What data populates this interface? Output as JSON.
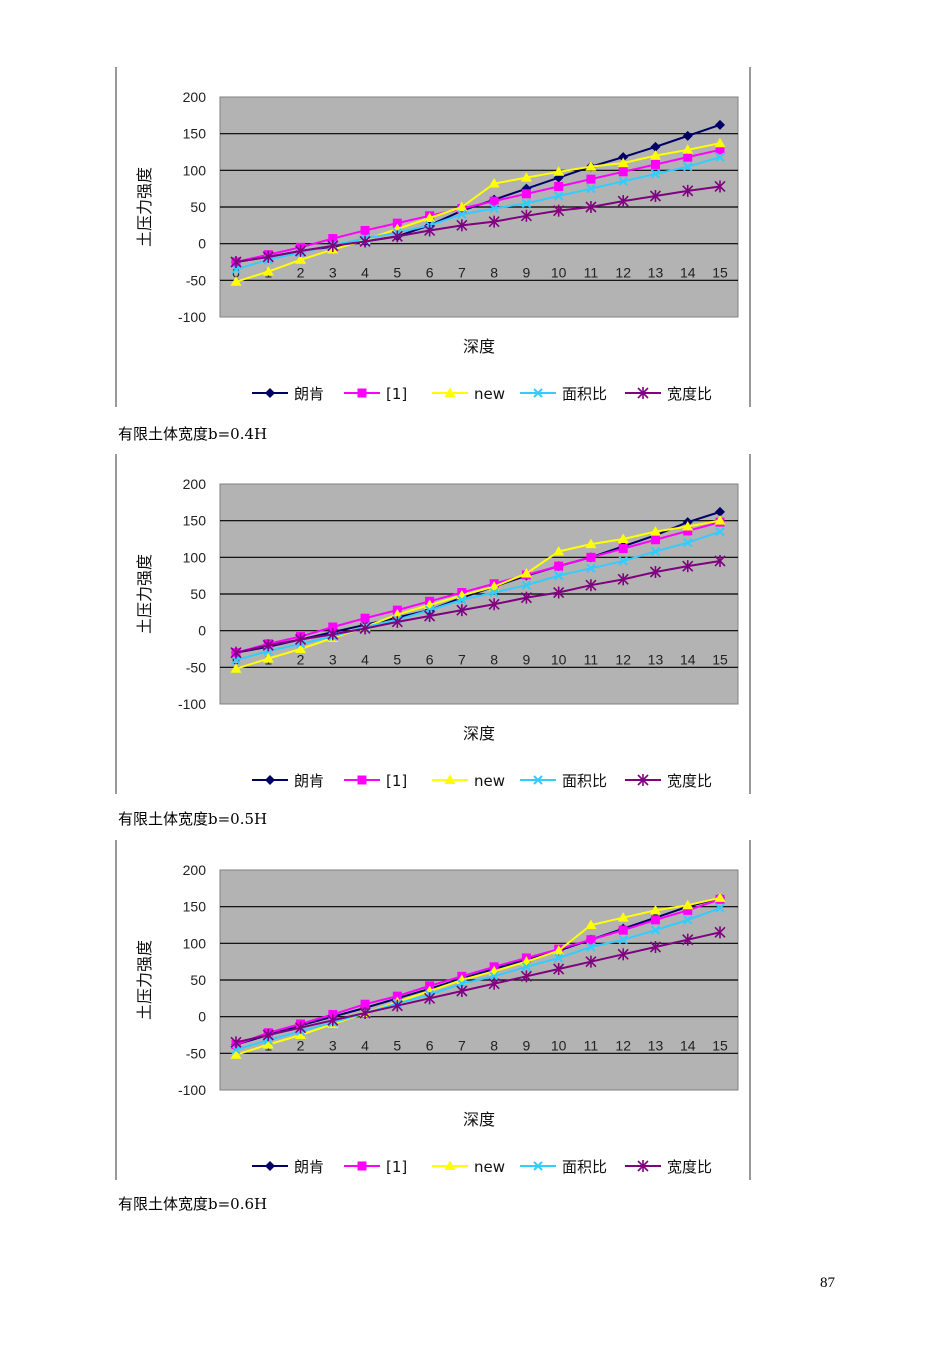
{
  "page_number": "87",
  "colors": {
    "plot_bg": "#b3b3b3",
    "grid": "#000000",
    "series": [
      "#000066",
      "#ff00ff",
      "#ffff00",
      "#33ccff",
      "#800080"
    ]
  },
  "chart_data": [
    {
      "type": "line",
      "caption": "有限土体宽度b=0.4H",
      "xlabel": "深度",
      "ylabel": "土压力强度",
      "x": [
        0,
        1,
        2,
        3,
        4,
        5,
        6,
        7,
        8,
        9,
        10,
        11,
        12,
        13,
        14,
        15
      ],
      "ylim": [
        -100,
        200
      ],
      "yticks": [
        200,
        150,
        100,
        50,
        0,
        -50,
        -100
      ],
      "grid": true,
      "legend_position": "bottom",
      "series": [
        {
          "name": "朗肯",
          "marker": "diamond",
          "values": [
            -25,
            -18,
            -10,
            -4,
            3,
            10,
            25,
            45,
            60,
            75,
            90,
            105,
            118,
            132,
            147,
            162
          ]
        },
        {
          "name": "[1]",
          "marker": "square",
          "values": [
            -25,
            -15,
            -5,
            7,
            18,
            28,
            38,
            48,
            58,
            68,
            78,
            88,
            98,
            108,
            118,
            128
          ]
        },
        {
          "name": "new",
          "marker": "triangle",
          "values": [
            -52,
            -38,
            -22,
            -8,
            5,
            20,
            35,
            50,
            82,
            90,
            98,
            105,
            110,
            120,
            128,
            137
          ]
        },
        {
          "name": "面积比",
          "marker": "x",
          "values": [
            -35,
            -22,
            -12,
            -2,
            7,
            15,
            25,
            40,
            48,
            55,
            65,
            75,
            85,
            95,
            105,
            118
          ]
        },
        {
          "name": "宽度比",
          "marker": "star",
          "values": [
            -25,
            -18,
            -10,
            -3,
            3,
            10,
            18,
            25,
            30,
            38,
            45,
            50,
            58,
            65,
            72,
            78
          ]
        }
      ]
    },
    {
      "type": "line",
      "caption": "有限土体宽度b=0.5H",
      "xlabel": "深度",
      "ylabel": "土压力强度",
      "x": [
        0,
        1,
        2,
        3,
        4,
        5,
        6,
        7,
        8,
        9,
        10,
        11,
        12,
        13,
        14,
        15
      ],
      "ylim": [
        -100,
        200
      ],
      "yticks": [
        200,
        150,
        100,
        50,
        0,
        -50,
        -100
      ],
      "grid": true,
      "legend_position": "bottom",
      "series": [
        {
          "name": "朗肯",
          "marker": "diamond",
          "values": [
            -30,
            -22,
            -12,
            -2,
            8,
            18,
            28,
            45,
            60,
            75,
            88,
            100,
            115,
            130,
            148,
            162
          ]
        },
        {
          "name": "[1]",
          "marker": "square",
          "values": [
            -30,
            -18,
            -8,
            5,
            17,
            28,
            40,
            52,
            64,
            76,
            88,
            100,
            112,
            124,
            136,
            148
          ]
        },
        {
          "name": "new",
          "marker": "triangle",
          "values": [
            -52,
            -38,
            -25,
            -10,
            5,
            22,
            35,
            48,
            60,
            78,
            108,
            118,
            125,
            135,
            142,
            150
          ]
        },
        {
          "name": "面积比",
          "marker": "x",
          "values": [
            -40,
            -28,
            -18,
            -8,
            5,
            15,
            28,
            42,
            52,
            62,
            75,
            85,
            95,
            108,
            120,
            135
          ]
        },
        {
          "name": "宽度比",
          "marker": "star",
          "values": [
            -30,
            -20,
            -12,
            -5,
            3,
            12,
            20,
            28,
            36,
            45,
            52,
            62,
            70,
            80,
            88,
            95
          ]
        }
      ]
    },
    {
      "type": "line",
      "caption": "有限土体宽度b=0.6H",
      "xlabel": "深度",
      "ylabel": "土压力强度",
      "x": [
        0,
        1,
        2,
        3,
        4,
        5,
        6,
        7,
        8,
        9,
        10,
        11,
        12,
        13,
        14,
        15
      ],
      "ylim": [
        -100,
        200
      ],
      "yticks": [
        200,
        150,
        100,
        50,
        0,
        -50,
        -100
      ],
      "grid": true,
      "legend_position": "bottom",
      "series": [
        {
          "name": "朗肯",
          "marker": "diamond",
          "values": [
            -38,
            -25,
            -12,
            0,
            12,
            25,
            38,
            52,
            65,
            78,
            90,
            105,
            120,
            135,
            150,
            162
          ]
        },
        {
          "name": "[1]",
          "marker": "square",
          "values": [
            -38,
            -22,
            -10,
            3,
            17,
            28,
            42,
            55,
            68,
            80,
            92,
            105,
            118,
            132,
            145,
            160
          ]
        },
        {
          "name": "new",
          "marker": "triangle",
          "values": [
            -52,
            -38,
            -25,
            -10,
            5,
            20,
            35,
            50,
            62,
            75,
            90,
            125,
            135,
            145,
            152,
            162
          ]
        },
        {
          "name": "面积比",
          "marker": "x",
          "values": [
            -45,
            -32,
            -20,
            -8,
            5,
            18,
            30,
            45,
            55,
            68,
            80,
            95,
            105,
            118,
            132,
            148
          ]
        },
        {
          "name": "宽度比",
          "marker": "star",
          "values": [
            -35,
            -25,
            -15,
            -5,
            5,
            15,
            25,
            35,
            45,
            55,
            65,
            75,
            85,
            95,
            105,
            115
          ]
        }
      ]
    }
  ]
}
